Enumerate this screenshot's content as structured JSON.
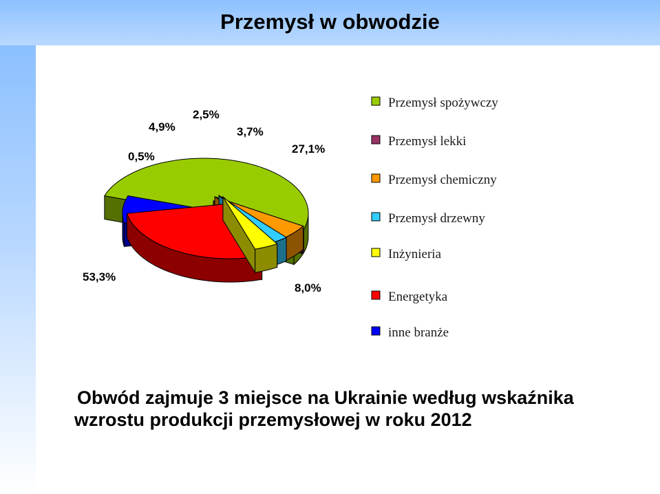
{
  "title": "Przemysł w obwodzie",
  "chart_data": {
    "type": "pie",
    "title": "",
    "slices": [
      {
        "label": "Przemysł spożywczy",
        "value": 53.3,
        "value_label": "53,3%",
        "color": "#99cc00"
      },
      {
        "label": "Przemysł lekki",
        "value": 0.5,
        "value_label": "0,5%",
        "color": "#993366"
      },
      {
        "label": "Przemysł chemiczny",
        "value": 4.9,
        "value_label": "4,9%",
        "color": "#ff9900"
      },
      {
        "label": "Przemysł drzewny",
        "value": 2.5,
        "value_label": "2,5%",
        "color": "#33ccff"
      },
      {
        "label": "Inżynieria",
        "value": 3.7,
        "value_label": "3,7%",
        "color": "#ffff00"
      },
      {
        "label": "Energetyka",
        "value": 27.1,
        "value_label": "27,1%",
        "color": "#ff0000"
      },
      {
        "label": "inne branże",
        "value": 8.0,
        "value_label": "8,0%",
        "color": "#0000ff"
      }
    ],
    "legend_position": "right",
    "style": "3d-exploded"
  },
  "caption": {
    "line1": "Obwód zajmuje 3 miejsce na Ukrainie według wskaźnika",
    "line2": "wzrostu produkcji przemysłowej w roku 2012"
  }
}
